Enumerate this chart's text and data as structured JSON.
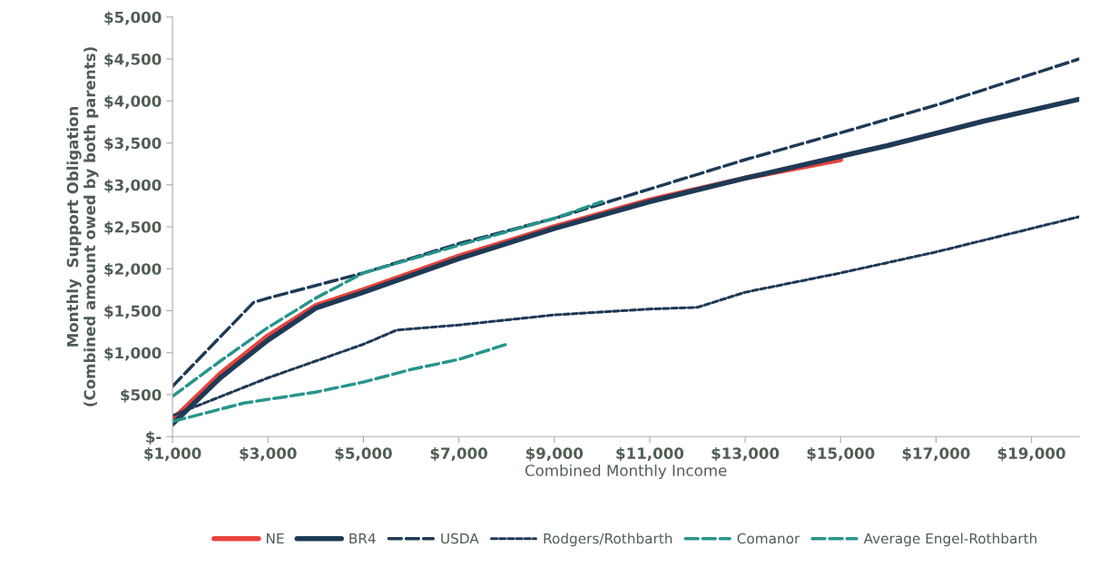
{
  "chart_data": {
    "type": "line",
    "xlabel": "Combined Monthly Income",
    "ylabel": "Monthly  Support Obligation\n(Combined amount owed by both parents)",
    "xlim": [
      1000,
      20000
    ],
    "ylim": [
      0,
      5000
    ],
    "xticks": [
      {
        "value": 1000,
        "label": "$1,000"
      },
      {
        "value": 3000,
        "label": "$3,000"
      },
      {
        "value": 5000,
        "label": "$5,000"
      },
      {
        "value": 7000,
        "label": "$7,000"
      },
      {
        "value": 9000,
        "label": "$9,000"
      },
      {
        "value": 11000,
        "label": "$11,000"
      },
      {
        "value": 13000,
        "label": "$13,000"
      },
      {
        "value": 15000,
        "label": "$15,000"
      },
      {
        "value": 17000,
        "label": "$17,000"
      },
      {
        "value": 19000,
        "label": "$19,000"
      }
    ],
    "yticks": [
      {
        "value": 0,
        "label": "$-"
      },
      {
        "value": 500,
        "label": "$500"
      },
      {
        "value": 1000,
        "label": "$1,000"
      },
      {
        "value": 1500,
        "label": "$1,500"
      },
      {
        "value": 2000,
        "label": "$2,000"
      },
      {
        "value": 2500,
        "label": "$2,500"
      },
      {
        "value": 3000,
        "label": "$3,000"
      },
      {
        "value": 3500,
        "label": "$3,500"
      },
      {
        "value": 4000,
        "label": "$4,000"
      },
      {
        "value": 4500,
        "label": "$4,500"
      },
      {
        "value": 5000,
        "label": "$5,000"
      }
    ],
    "grid": false,
    "legend": "bottom",
    "marker": "none",
    "series": [
      {
        "name": "NE",
        "color": "#e8433b",
        "line_style": "solid",
        "x": [
          1000,
          2000,
          3000,
          4000,
          5000,
          7000,
          9000,
          11000,
          13000,
          15000
        ],
        "values": [
          200,
          750,
          1200,
          1560,
          1750,
          2150,
          2500,
          2820,
          3080,
          3300
        ]
      },
      {
        "name": "BR4",
        "color": "#1f3a56",
        "line_style": "solid",
        "x": [
          1000,
          2000,
          3000,
          4000,
          5000,
          7000,
          9000,
          11000,
          13000,
          16000,
          18000,
          20000
        ],
        "values": [
          150,
          700,
          1150,
          1530,
          1720,
          2120,
          2480,
          2800,
          3080,
          3470,
          3760,
          4020
        ]
      },
      {
        "name": "USDA",
        "color": "#1f3a56",
        "line_style": "dashed",
        "x": [
          1000,
          2700,
          3000,
          4000,
          5000,
          7000,
          9000,
          11000,
          13000,
          15000,
          17000,
          20000
        ],
        "values": [
          600,
          1600,
          1650,
          1800,
          1950,
          2300,
          2600,
          2950,
          3300,
          3620,
          3950,
          4500
        ]
      },
      {
        "name": "Rodgers/Rothbarth",
        "color": "#1f3a56",
        "line_style": "dotted",
        "x": [
          1000,
          3000,
          5000,
          5700,
          7000,
          9000,
          11000,
          12000,
          13000,
          15000,
          17000,
          20000
        ],
        "values": [
          250,
          700,
          1100,
          1270,
          1330,
          1450,
          1520,
          1540,
          1720,
          1950,
          2200,
          2620
        ]
      },
      {
        "name": "Comanor",
        "color": "#26958c",
        "line_style": "dashed",
        "x": [
          1000,
          2500,
          4000,
          5000,
          6000,
          7000,
          8000
        ],
        "values": [
          180,
          400,
          530,
          650,
          800,
          920,
          1100
        ]
      },
      {
        "name": "Average Engel-Rothbarth",
        "color": "#26958c",
        "line_style": "dashed",
        "x": [
          1000,
          2000,
          3000,
          4000,
          5000,
          7000,
          9000,
          10000
        ],
        "values": [
          480,
          900,
          1300,
          1650,
          1950,
          2280,
          2600,
          2800
        ]
      }
    ]
  }
}
